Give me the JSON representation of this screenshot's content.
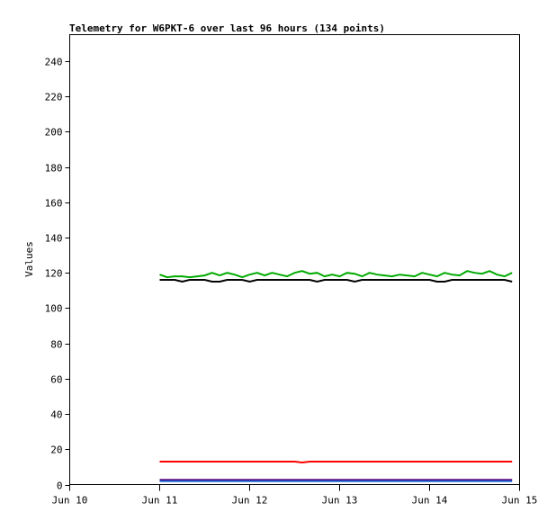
{
  "chart_data": {
    "type": "line",
    "title": "Telemetry for W6PKT-6 over last 96 hours (134 points)",
    "xlabel": "",
    "ylabel": "Values",
    "xlim": [
      "Jun 10",
      "Jun 15"
    ],
    "ylim": [
      0,
      255
    ],
    "x_ticks": [
      "Jun 10",
      "Jun 11",
      "Jun 12",
      "Jun 13",
      "Jun 14",
      "Jun 15"
    ],
    "y_ticks": [
      0,
      20,
      40,
      60,
      80,
      100,
      120,
      140,
      160,
      180,
      200,
      220,
      240
    ],
    "grid": false,
    "x": [
      "Jun 11 00:00",
      "Jun 11 02:00",
      "Jun 11 04:00",
      "Jun 11 06:00",
      "Jun 11 08:00",
      "Jun 11 10:00",
      "Jun 11 12:00",
      "Jun 11 14:00",
      "Jun 11 16:00",
      "Jun 11 18:00",
      "Jun 11 20:00",
      "Jun 11 22:00",
      "Jun 12 00:00",
      "Jun 12 02:00",
      "Jun 12 04:00",
      "Jun 12 06:00",
      "Jun 12 08:00",
      "Jun 12 10:00",
      "Jun 12 12:00",
      "Jun 12 14:00",
      "Jun 12 16:00",
      "Jun 12 18:00",
      "Jun 12 20:00",
      "Jun 12 22:00",
      "Jun 13 00:00",
      "Jun 13 02:00",
      "Jun 13 04:00",
      "Jun 13 06:00",
      "Jun 13 08:00",
      "Jun 13 10:00",
      "Jun 13 12:00",
      "Jun 13 14:00",
      "Jun 13 16:00",
      "Jun 13 18:00",
      "Jun 13 20:00",
      "Jun 13 22:00",
      "Jun 14 00:00",
      "Jun 14 02:00",
      "Jun 14 04:00",
      "Jun 14 06:00",
      "Jun 14 08:00",
      "Jun 14 10:00",
      "Jun 14 12:00",
      "Jun 14 14:00",
      "Jun 14 16:00",
      "Jun 14 18:00",
      "Jun 14 20:00",
      "Jun 14 22:00"
    ],
    "series": [
      {
        "color": "#00aa00",
        "values": [
          119,
          117.5,
          118,
          118,
          117.5,
          118,
          118.5,
          120,
          118.5,
          120,
          119,
          117.5,
          119,
          120,
          118.5,
          120,
          119,
          118,
          120,
          121,
          119.5,
          120,
          118,
          119,
          118,
          120,
          119.5,
          118,
          120,
          119,
          118.5,
          118,
          119,
          118.5,
          118,
          120,
          119,
          118,
          120,
          119,
          118.5,
          121,
          120,
          119.5,
          121,
          119,
          118,
          120
        ]
      },
      {
        "color": "#000000",
        "values": [
          116,
          116,
          116,
          115,
          116,
          116,
          116,
          115,
          115,
          116,
          116,
          116,
          115,
          116,
          116,
          116,
          116,
          116,
          116,
          116,
          116,
          115,
          116,
          116,
          116,
          116,
          115,
          116,
          116,
          116,
          116,
          116,
          116,
          116,
          116,
          116,
          116,
          115,
          115,
          116,
          116,
          116,
          116,
          116,
          116,
          116,
          116,
          115
        ]
      },
      {
        "color": "#ff0000",
        "values": [
          13,
          13,
          13,
          13,
          13,
          13,
          13,
          13,
          13,
          13,
          13,
          13,
          13,
          13,
          13,
          13,
          13,
          13,
          13,
          12.5,
          13,
          13,
          13,
          13,
          13,
          13,
          13,
          13,
          13,
          13,
          13,
          13,
          13,
          13,
          13,
          13,
          13,
          13,
          13,
          13,
          13,
          13,
          13,
          13,
          13,
          13,
          13,
          13
        ]
      },
      {
        "color": "#660077",
        "values": [
          2.7,
          2.7,
          2.7,
          2.7,
          2.7,
          2.7,
          2.7,
          2.7,
          2.7,
          2.7,
          2.7,
          2.7,
          2.7,
          2.7,
          2.7,
          2.7,
          2.7,
          2.7,
          2.7,
          2.7,
          2.7,
          2.7,
          2.7,
          2.7,
          2.7,
          2.7,
          2.7,
          2.7,
          2.7,
          2.7,
          2.7,
          2.7,
          2.7,
          2.7,
          2.7,
          2.7,
          2.7,
          2.7,
          2.7,
          2.7,
          2.7,
          2.7,
          2.7,
          2.7,
          2.7,
          2.7,
          2.7,
          2.7
        ]
      },
      {
        "color": "#1155cc",
        "values": [
          2,
          2,
          2,
          2,
          2,
          2,
          2,
          2,
          2,
          2,
          2,
          2,
          2,
          2,
          2,
          2,
          2,
          2,
          2,
          2,
          2,
          2,
          2,
          2,
          2,
          2,
          2,
          2,
          2,
          2,
          2,
          2,
          2,
          2,
          2,
          2,
          2,
          2,
          2,
          2,
          2,
          2,
          2,
          2,
          2,
          2,
          2,
          2
        ]
      }
    ]
  }
}
